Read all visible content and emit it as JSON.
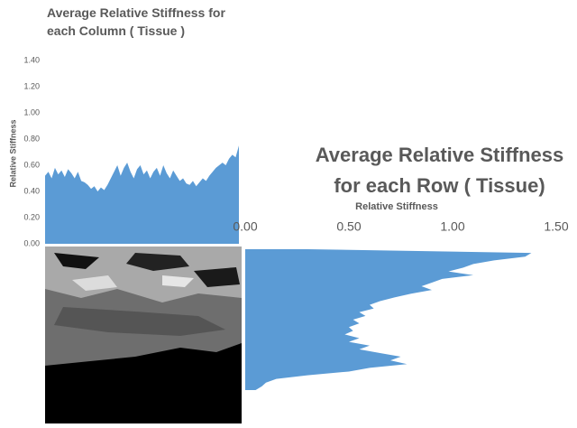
{
  "chart_data": [
    {
      "type": "area",
      "title": "Average Relative Stiffness for each Column ( Tissue )",
      "y_label": "Relative Stiffness",
      "color": "#5b9bd5",
      "values": [
        0.52,
        0.55,
        0.5,
        0.58,
        0.53,
        0.56,
        0.51,
        0.57,
        0.54,
        0.5,
        0.55,
        0.48,
        0.47,
        0.45,
        0.42,
        0.44,
        0.4,
        0.43,
        0.41,
        0.45,
        0.5,
        0.55,
        0.6,
        0.52,
        0.58,
        0.62,
        0.55,
        0.5,
        0.57,
        0.6,
        0.53,
        0.56,
        0.5,
        0.55,
        0.58,
        0.52,
        0.6,
        0.54,
        0.5,
        0.56,
        0.52,
        0.48,
        0.5,
        0.46,
        0.45,
        0.48,
        0.44,
        0.47,
        0.5,
        0.48,
        0.52,
        0.55,
        0.58,
        0.6,
        0.62,
        0.6,
        0.65,
        0.68,
        0.66,
        0.75
      ],
      "ylim": [
        0,
        1.4
      ],
      "yticks": [
        {
          "value": 0,
          "label": "0.00"
        },
        {
          "value": 0.2,
          "label": "0.20"
        },
        {
          "value": 0.4,
          "label": "0.40"
        },
        {
          "value": 0.6,
          "label": "0.60"
        },
        {
          "value": 0.8,
          "label": "0.80"
        },
        {
          "value": 1,
          "label": "1.00"
        },
        {
          "value": 1.2,
          "label": "1.20"
        },
        {
          "value": 1.4,
          "label": "1.40"
        }
      ]
    },
    {
      "type": "hArea",
      "title": "Average Relative Stiffness for each Row ( Tissue)",
      "x_label": "Relative Stiffness",
      "color": "#5b9bd5",
      "values": [
        0.3,
        1.38,
        1.35,
        1.2,
        1.1,
        1.05,
        0.98,
        1.1,
        0.95,
        0.9,
        0.85,
        0.9,
        0.8,
        0.72,
        0.65,
        0.6,
        0.62,
        0.55,
        0.58,
        0.52,
        0.55,
        0.5,
        0.52,
        0.48,
        0.55,
        0.5,
        0.6,
        0.55,
        0.65,
        0.75,
        0.7,
        0.78,
        0.6,
        0.5,
        0.3,
        0.15,
        0.1,
        0.08,
        0.05
      ],
      "xlim": [
        0,
        1.6
      ],
      "xticks": [
        {
          "value": 0,
          "label": "0.00"
        },
        {
          "value": 0.5,
          "label": "0.50"
        },
        {
          "value": 1,
          "label": "1.00"
        },
        {
          "value": 1.5,
          "label": "1.50"
        }
      ]
    }
  ]
}
